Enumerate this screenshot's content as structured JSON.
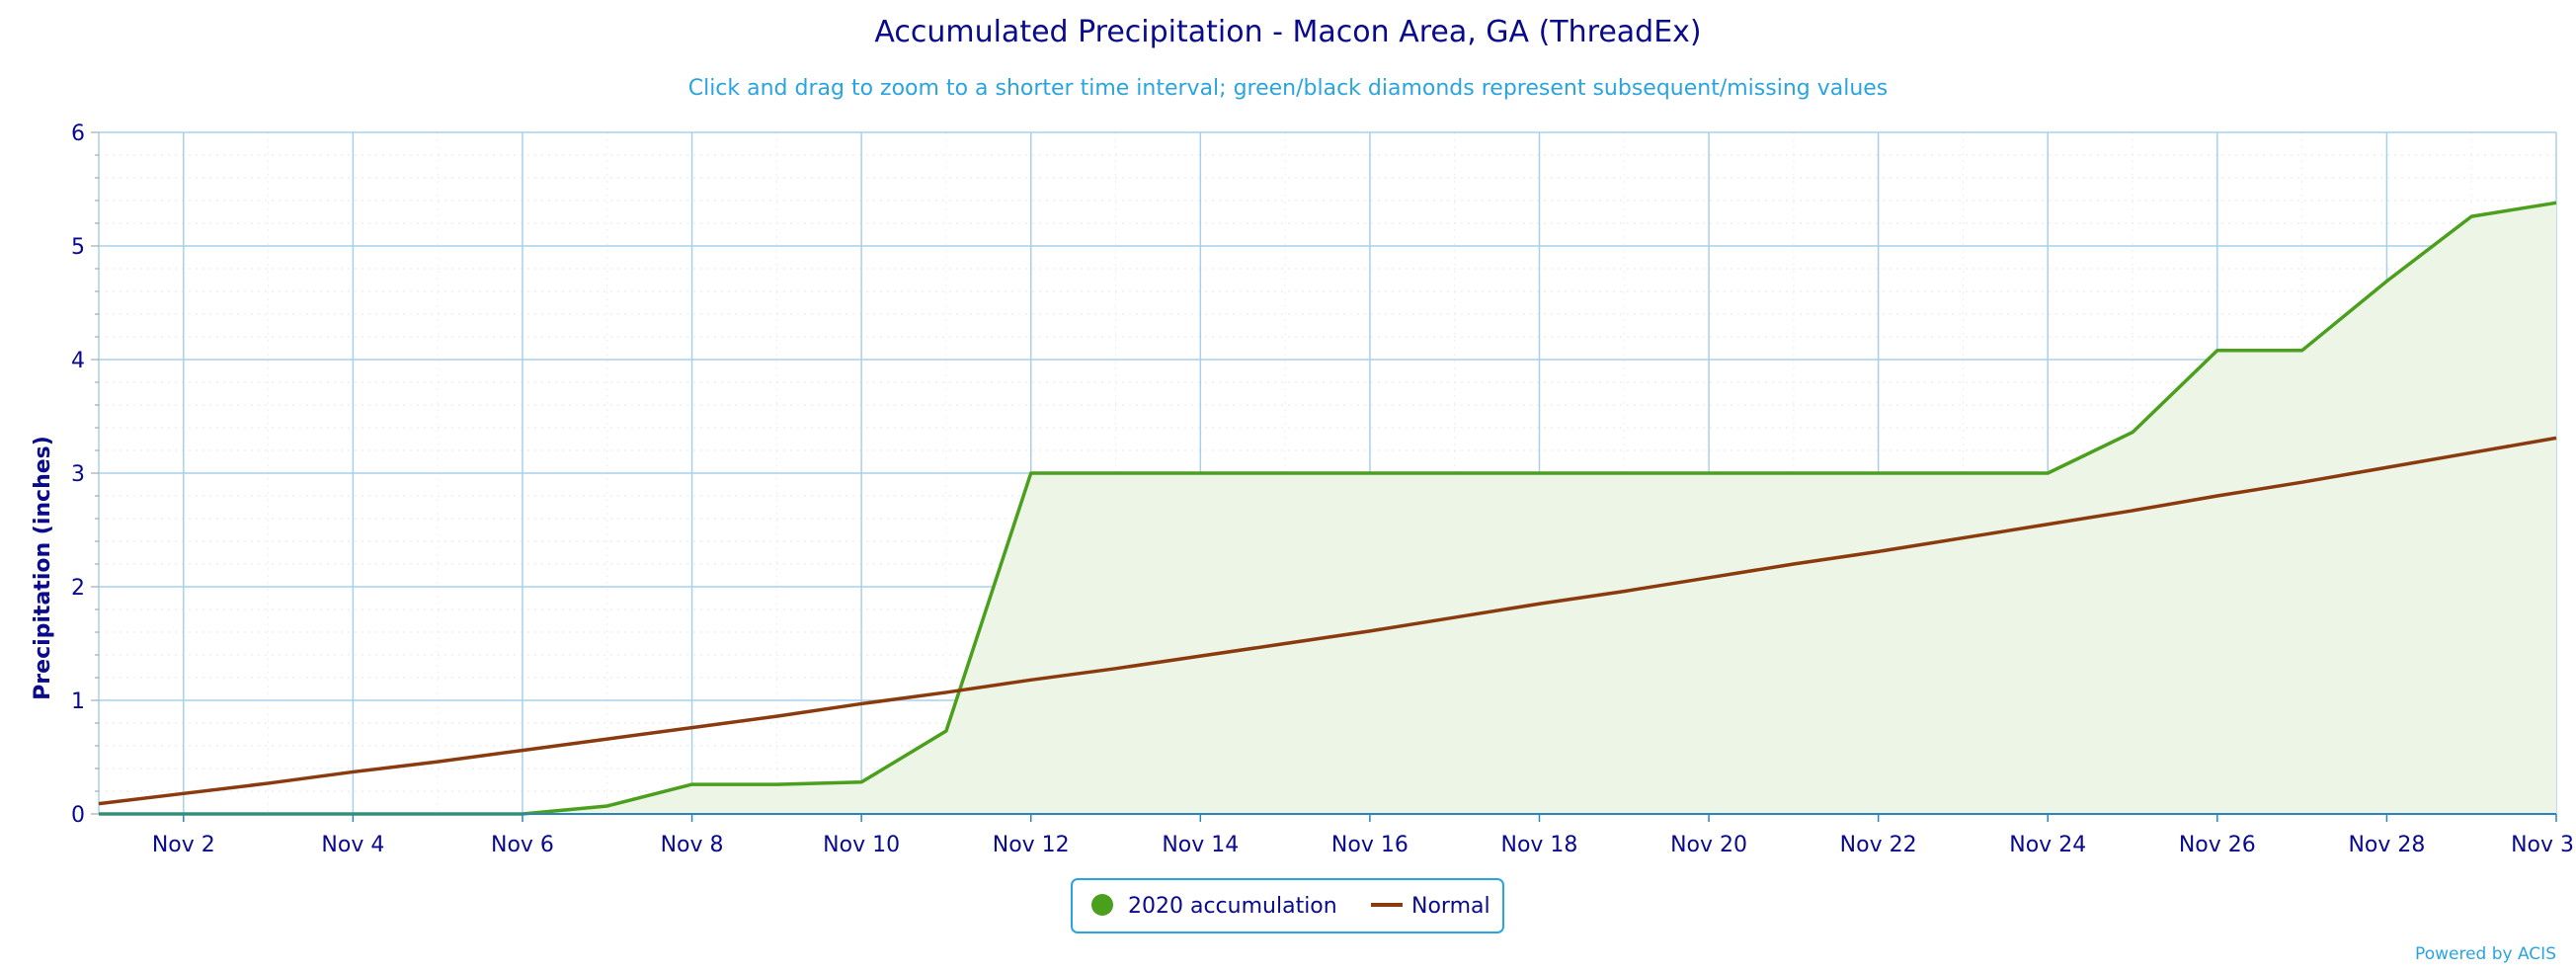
{
  "chart_data": {
    "type": "area",
    "title": "Accumulated Precipitation - Macon Area, GA (ThreadEx)",
    "subtitle": "Click and drag to zoom to a shorter time interval; green/black diamonds represent subsequent/missing values",
    "ylabel": "Precipitation (inches)",
    "xlabel": "",
    "ylim": [
      0,
      6
    ],
    "y_ticks": [
      "0",
      "1",
      "2",
      "3",
      "4",
      "5",
      "6"
    ],
    "x_range_days": [
      1,
      30
    ],
    "x_ticks": [
      "Nov 2",
      "Nov 4",
      "Nov 6",
      "Nov 8",
      "Nov 10",
      "Nov 12",
      "Nov 14",
      "Nov 16",
      "Nov 18",
      "Nov 20",
      "Nov 22",
      "Nov 24",
      "Nov 26",
      "Nov 28",
      "Nov 3"
    ],
    "x_tick_days": [
      2,
      4,
      6,
      8,
      10,
      12,
      14,
      16,
      18,
      20,
      22,
      24,
      26,
      28,
      30
    ],
    "grid": true,
    "legend_position": "bottom-center",
    "series": [
      {
        "name": "2020 accumulation",
        "kind": "area",
        "color": "#4aa01c",
        "fill": "#edf5e6",
        "x": [
          1,
          2,
          3,
          4,
          5,
          6,
          7,
          8,
          9,
          10,
          11,
          12,
          13,
          14,
          15,
          16,
          17,
          18,
          19,
          20,
          21,
          22,
          23,
          24,
          25,
          26,
          27,
          28,
          29,
          30
        ],
        "values": [
          0.0,
          0.0,
          0.0,
          0.0,
          0.0,
          0.0,
          0.07,
          0.26,
          0.26,
          0.28,
          0.73,
          3.0,
          3.0,
          3.0,
          3.0,
          3.0,
          3.0,
          3.0,
          3.0,
          3.0,
          3.0,
          3.0,
          3.0,
          3.0,
          3.36,
          4.08,
          4.08,
          4.69,
          5.26,
          5.38
        ]
      },
      {
        "name": "Normal",
        "kind": "line",
        "color": "#8b3a0e",
        "x": [
          1,
          2,
          3,
          4,
          5,
          6,
          7,
          8,
          9,
          10,
          11,
          12,
          13,
          14,
          15,
          16,
          17,
          18,
          19,
          20,
          21,
          22,
          23,
          24,
          25,
          26,
          27,
          28,
          29,
          30
        ],
        "values": [
          0.09,
          0.18,
          0.27,
          0.37,
          0.46,
          0.56,
          0.66,
          0.76,
          0.86,
          0.97,
          1.07,
          1.18,
          1.28,
          1.39,
          1.5,
          1.61,
          1.73,
          1.85,
          1.96,
          2.08,
          2.2,
          2.31,
          2.43,
          2.55,
          2.67,
          2.8,
          2.92,
          3.05,
          3.18,
          3.31
        ]
      }
    ]
  },
  "credits": "Powered by ACIS",
  "colors": {
    "title": "#0a0a8c",
    "subtitle": "#2aa4df",
    "axis_text": "#0a0a8c",
    "grid": "#a8d0ea",
    "legend_border": "#2aa4df"
  }
}
